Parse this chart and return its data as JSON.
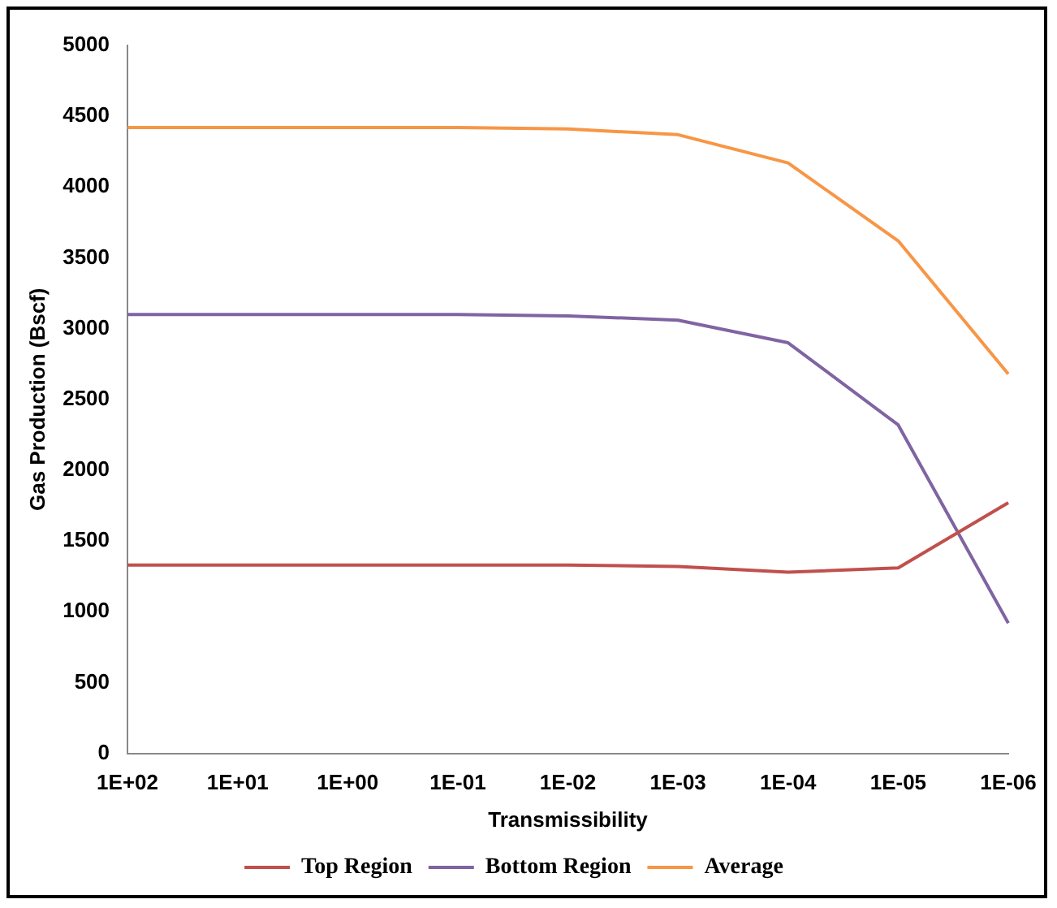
{
  "chart_data": {
    "type": "line",
    "xlabel": "Transmissibility",
    "ylabel": "Gas Production (Bscf)",
    "categories": [
      "1E+02",
      "1E+01",
      "1E+00",
      "1E-01",
      "1E-02",
      "1E-03",
      "1E-04",
      "1E-05",
      "1E-06"
    ],
    "series": [
      {
        "name": "Top Region",
        "color": "#c0504d",
        "values": [
          1330,
          1330,
          1330,
          1330,
          1330,
          1320,
          1280,
          1310,
          1770
        ]
      },
      {
        "name": "Bottom Region",
        "color": "#8064a2",
        "values": [
          3100,
          3100,
          3100,
          3100,
          3090,
          3060,
          2900,
          2320,
          920
        ]
      },
      {
        "name": "Average",
        "color": "#f79646",
        "values": [
          4420,
          4420,
          4420,
          4420,
          4410,
          4370,
          4170,
          3620,
          2680
        ]
      }
    ],
    "ylim": [
      0,
      5000
    ],
    "yticks": [
      0,
      500,
      1000,
      1500,
      2000,
      2500,
      3000,
      3500,
      4000,
      4500,
      5000
    ],
    "grid": false,
    "legend": "bottom",
    "marker": "none",
    "line_style": "solid"
  }
}
